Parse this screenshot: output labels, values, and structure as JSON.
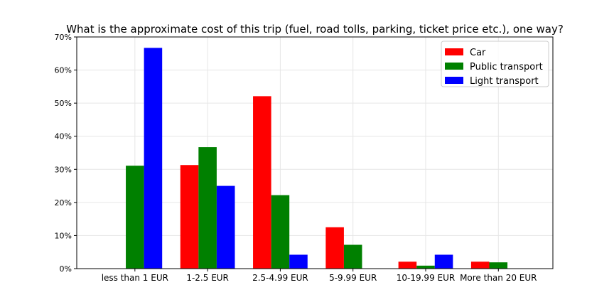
{
  "chart_data": {
    "type": "bar",
    "title": "What is the approximate cost of this trip (fuel, road tolls, parking, ticket price etc.), one way?",
    "xlabel": "",
    "ylabel": "",
    "categories": [
      "less than 1 EUR",
      "1-2.5 EUR",
      "2.5-4.99 EUR",
      "5-9.99 EUR",
      "10-19.99 EUR",
      "More than 20 EUR"
    ],
    "series": [
      {
        "name": "Car",
        "color": "#ff0000",
        "values": [
          0,
          31.3,
          52.1,
          12.5,
          2.1,
          2.1
        ]
      },
      {
        "name": "Public transport",
        "color": "#008000",
        "values": [
          31.1,
          36.7,
          22.2,
          7.2,
          0.9,
          1.9
        ]
      },
      {
        "name": "Light transport",
        "color": "#0000ff",
        "values": [
          66.7,
          25.0,
          4.2,
          0,
          4.2,
          0
        ]
      }
    ],
    "ylim": [
      0,
      70
    ],
    "yticks": [
      0,
      10,
      20,
      30,
      40,
      50,
      60,
      70
    ],
    "ytick_labels": [
      "0%",
      "10%",
      "20%",
      "30%",
      "40%",
      "50%",
      "60%",
      "70%"
    ],
    "grid": true,
    "legend_position": "top-right"
  }
}
